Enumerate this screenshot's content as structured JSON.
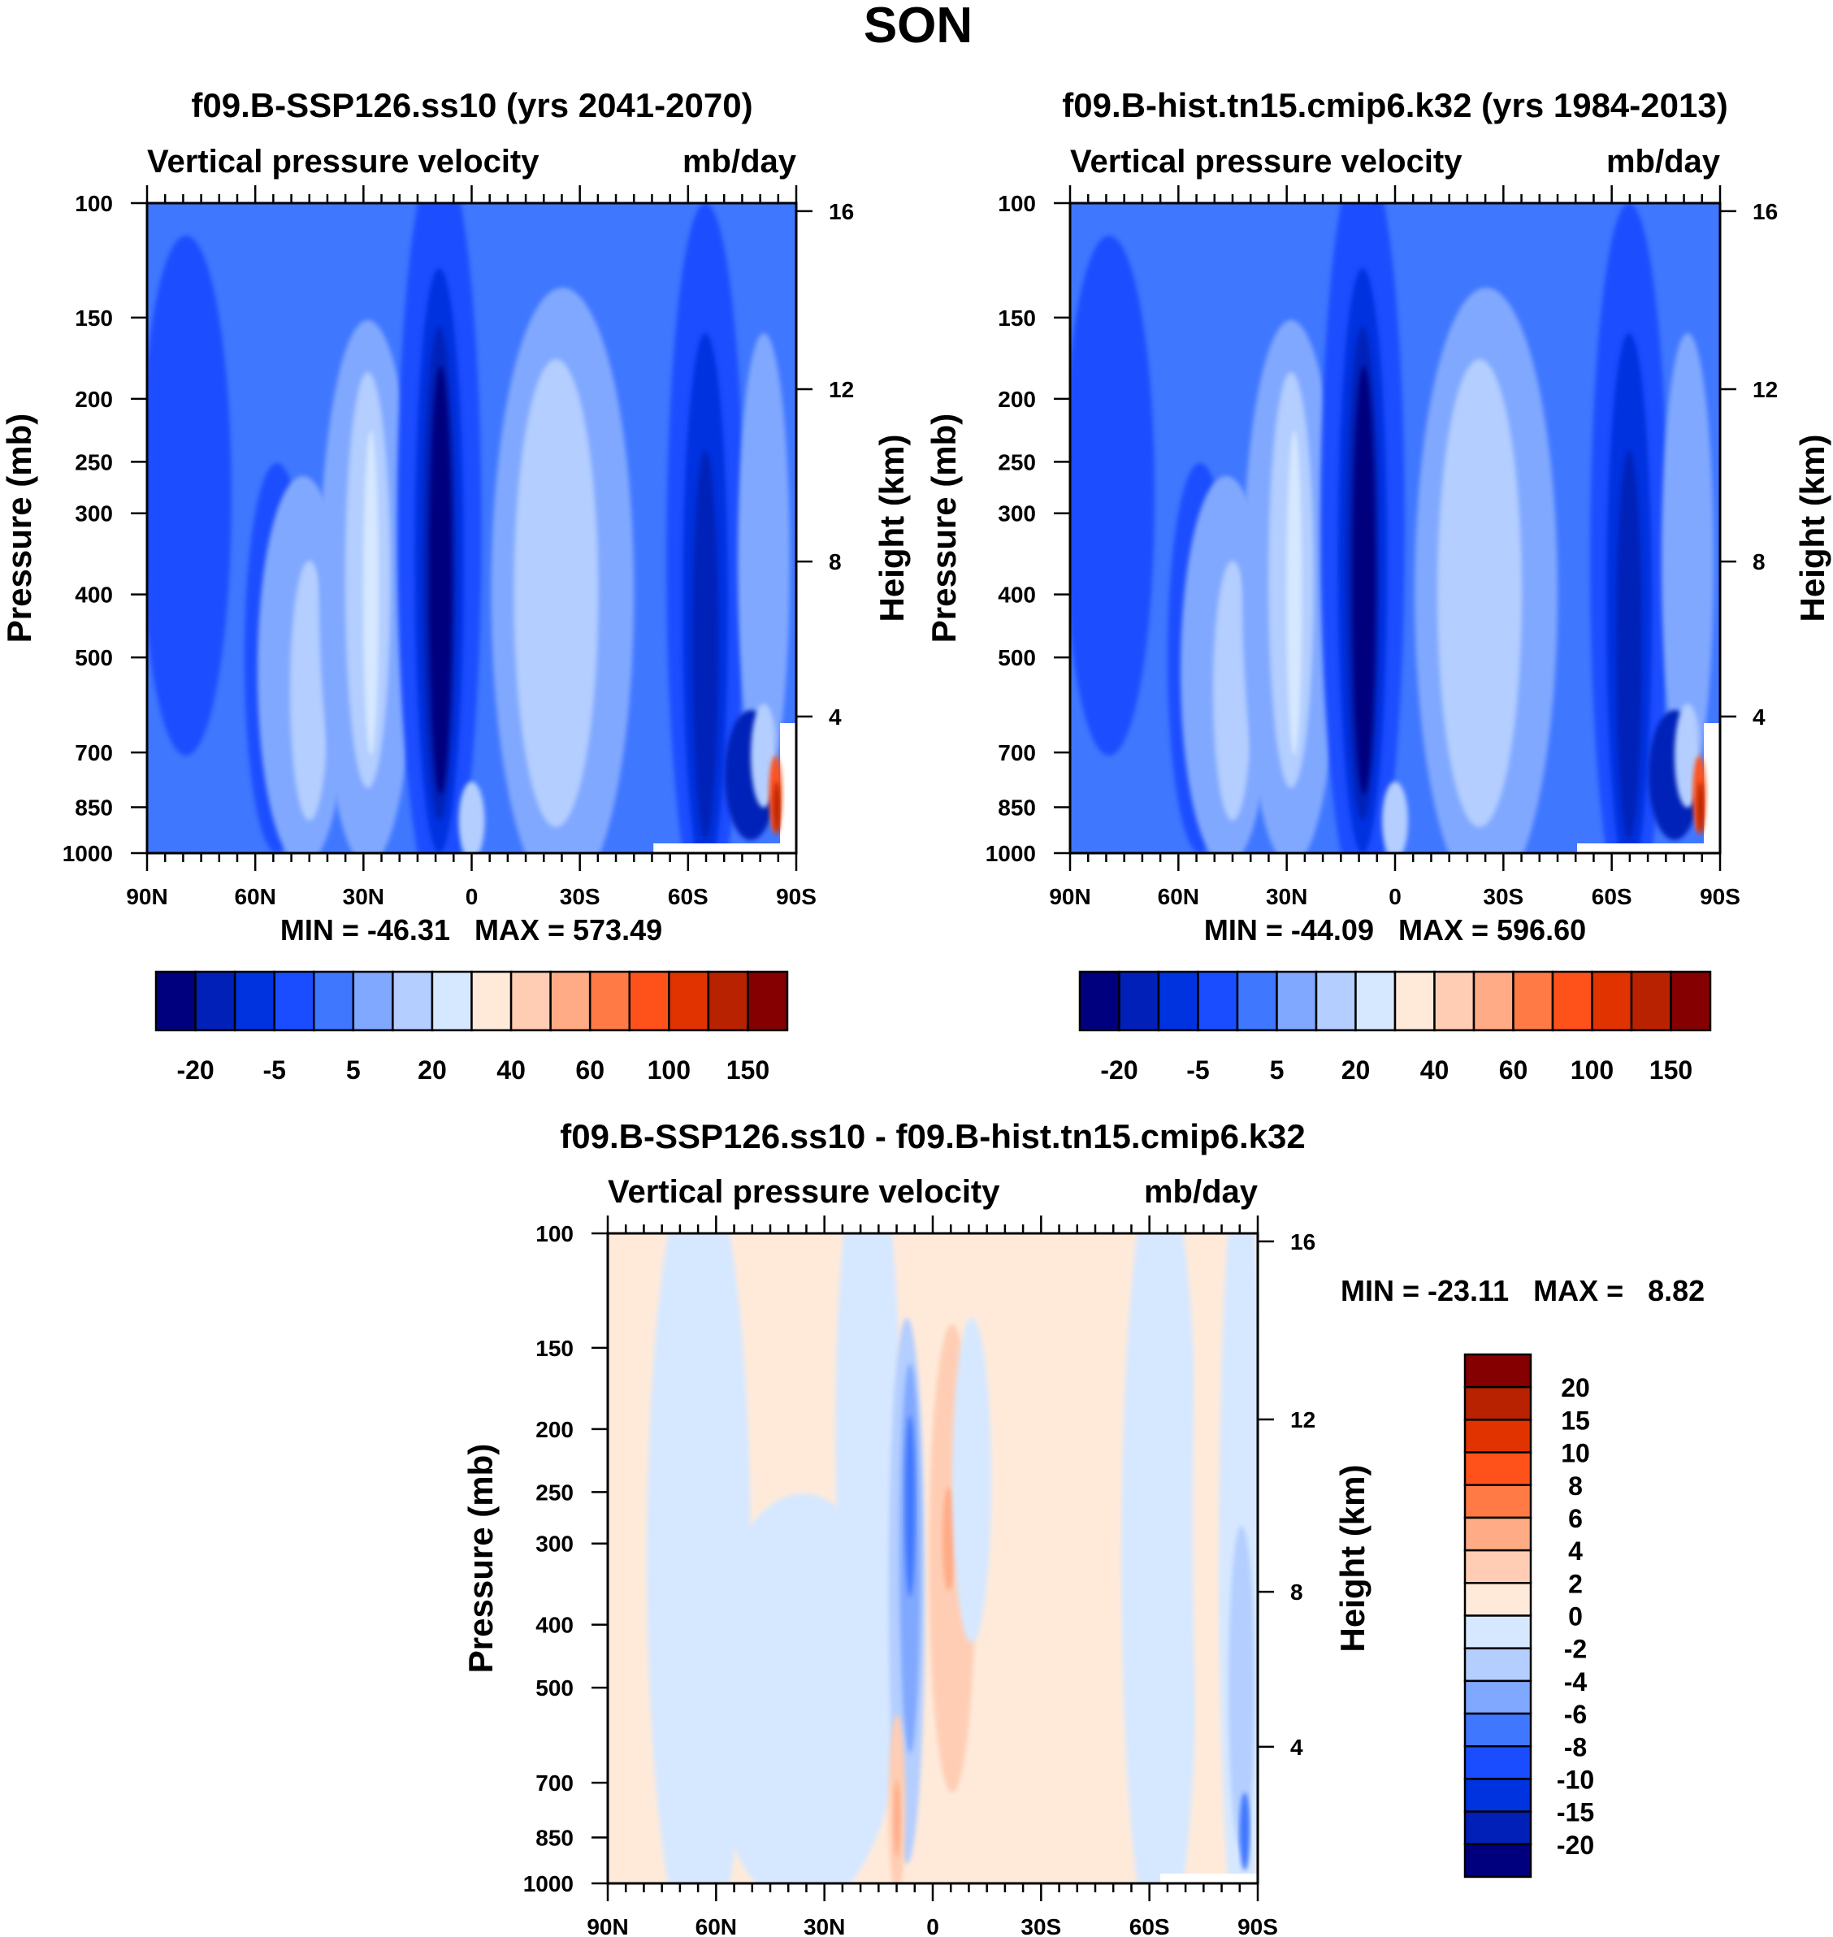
{
  "title": "SON",
  "panels": [
    {
      "title": "f09.B-SSP126.ss10 (yrs 2041-2070)",
      "left_label": "Vertical pressure velocity",
      "right_label": "mb/day",
      "ylabel": "Pressure (mb)",
      "ylabel_right": "Height (km)",
      "stats": "MIN = -46.31   MAX = 573.49"
    },
    {
      "title": "f09.B-hist.tn15.cmip6.k32 (yrs 1984-2013)",
      "left_label": "Vertical pressure velocity",
      "right_label": "mb/day",
      "ylabel": "Pressure (mb)",
      "ylabel_right": "Height (km)",
      "stats": "MIN = -44.09   MAX = 596.60"
    },
    {
      "title": "f09.B-SSP126.ss10 - f09.B-hist.tn15.cmip6.k32",
      "left_label": "Vertical pressure velocity",
      "right_label": "mb/day",
      "ylabel": "Pressure (mb)",
      "ylabel_right": "Height (km)",
      "stats": "MIN = -23.11   MAX =   8.82"
    }
  ],
  "chart_data": [
    {
      "type": "heatmap",
      "title": "f09.B-SSP126.ss10 (yrs 2041-2070)",
      "variable": "Vertical pressure velocity",
      "units": "mb/day",
      "xlabel": "",
      "ylabel": "Pressure (mb)",
      "ylabel_right": "Height (km)",
      "x_ticks": [
        "90N",
        "60N",
        "30N",
        "0",
        "30S",
        "60S",
        "90S"
      ],
      "y_ticks": [
        100,
        150,
        200,
        250,
        300,
        400,
        500,
        700,
        850,
        1000
      ],
      "y_range": [
        100,
        1000
      ],
      "y_scale": "log",
      "height_ticks": [
        16,
        12,
        8,
        4
      ],
      "min": -46.31,
      "max": 573.49,
      "colorbar_labels": [
        "-20",
        "-5",
        "5",
        "20",
        "40",
        "60",
        "100",
        "150"
      ]
    },
    {
      "type": "heatmap",
      "title": "f09.B-hist.tn15.cmip6.k32 (yrs 1984-2013)",
      "variable": "Vertical pressure velocity",
      "units": "mb/day",
      "ylabel": "Pressure (mb)",
      "ylabel_right": "Height (km)",
      "x_ticks": [
        "90N",
        "60N",
        "30N",
        "0",
        "30S",
        "60S",
        "90S"
      ],
      "y_ticks": [
        100,
        150,
        200,
        250,
        300,
        400,
        500,
        700,
        850,
        1000
      ],
      "y_range": [
        100,
        1000
      ],
      "y_scale": "log",
      "height_ticks": [
        16,
        12,
        8,
        4
      ],
      "min": -44.09,
      "max": 596.6,
      "colorbar_labels": [
        "-20",
        "-5",
        "5",
        "20",
        "40",
        "60",
        "100",
        "150"
      ]
    },
    {
      "type": "heatmap",
      "title": "f09.B-SSP126.ss10 - f09.B-hist.tn15.cmip6.k32",
      "variable": "Vertical pressure velocity",
      "units": "mb/day",
      "ylabel": "Pressure (mb)",
      "ylabel_right": "Height (km)",
      "x_ticks": [
        "90N",
        "60N",
        "30N",
        "0",
        "30S",
        "60S",
        "90S"
      ],
      "y_ticks": [
        100,
        150,
        200,
        250,
        300,
        400,
        500,
        700,
        850,
        1000
      ],
      "y_range": [
        100,
        1000
      ],
      "y_scale": "log",
      "height_ticks": [
        16,
        12,
        8,
        4
      ],
      "min": -23.11,
      "max": 8.82,
      "colorbar_labels": [
        "20",
        "15",
        "10",
        "8",
        "6",
        "4",
        "2",
        "0",
        "-2",
        "-4",
        "-6",
        "-8",
        "-10",
        "-15",
        "-20"
      ]
    }
  ],
  "colors": [
    "#00007f",
    "#0020b8",
    "#0033e0",
    "#1a4dff",
    "#4077ff",
    "#80a8ff",
    "#b3ceff",
    "#d6e8ff",
    "#ffeada",
    "#ffcdb4",
    "#ffab85",
    "#ff7a45",
    "#ff521a",
    "#e03300",
    "#b82200",
    "#850000"
  ]
}
